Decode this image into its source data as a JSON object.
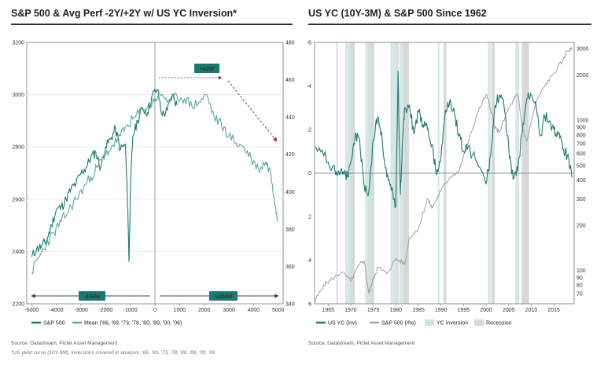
{
  "panels": {
    "left": {
      "title": "S&P 500 & Avg Perf -2Y/+2Y w/ US YC Inversion*",
      "legend": [
        "S&P 500",
        "Mean ('66, '69, '73, '78, '80, '89, '00, '06)"
      ],
      "source": "Source: Datastream, Pictet Asset Management",
      "note": "*US yield curve (10Y-3M), inversions covered in analysis: '66, '69, '73, '78, '80, '89, '00, '06"
    },
    "right": {
      "title": "US YC (10Y-3M) & S&P 500 Since 1962",
      "legend": [
        "US YC (inv)",
        "S&P 500 (rhs)",
        "YC Inversion",
        "Recession"
      ],
      "source": "Source: Datastream, Pictet Asset Management"
    }
  },
  "colors": {
    "teal": "#1a7a72",
    "mean_teal": "#5aa8a0",
    "gray_line": "#a0a0a0",
    "inversion_band": "#cfe3e1",
    "recession_band": "#d8d8d8",
    "arrow_red": "#a33a3a"
  },
  "chart_data": [
    {
      "type": "line",
      "title": "S&P 500 & Avg Perf -2Y/+2Y w/ US YC Inversion*",
      "x_ticks": [
        -5000,
        -4000,
        -3000,
        -2000,
        -1000,
        0,
        1000,
        2000,
        3000,
        4000,
        5000
      ],
      "xlim": [
        -5200,
        5200
      ],
      "y_left_ticks": [
        2200,
        2400,
        2600,
        2800,
        3000,
        3200
      ],
      "ylim_left": [
        2200,
        3200
      ],
      "y_right_ticks": [
        340,
        360,
        380,
        400,
        420,
        440,
        460,
        480
      ],
      "ylim_right": [
        340,
        480
      ],
      "annotations": {
        "left_arrow": "-104W",
        "right_arrow": "+104W",
        "top_arrow": "+42W"
      },
      "series": [
        {
          "name": "S&P 500",
          "axis": "left",
          "x": [
            -5000,
            -4800,
            -4600,
            -4400,
            -4200,
            -4000,
            -3800,
            -3600,
            -3400,
            -3200,
            -3000,
            -2800,
            -2600,
            -2400,
            -2200,
            -2000,
            -1800,
            -1600,
            -1400,
            -1200,
            -1100,
            -1050,
            -1000,
            -900,
            -700,
            -500,
            -300,
            -100,
            100,
            300,
            500,
            700,
            900
          ],
          "values": [
            2380,
            2410,
            2420,
            2440,
            2500,
            2560,
            2570,
            2600,
            2640,
            2660,
            2700,
            2720,
            2760,
            2780,
            2720,
            2800,
            2830,
            2870,
            2790,
            2810,
            2560,
            2360,
            2620,
            2840,
            2900,
            2950,
            2930,
            3000,
            3020,
            2920,
            2940,
            3000,
            2960
          ]
        },
        {
          "name": "Mean ('66, '69, '73, '78, '80, '89, '00, '06)",
          "axis": "right",
          "x": [
            -5000,
            -4700,
            -4400,
            -4100,
            -3800,
            -3500,
            -3200,
            -2900,
            -2600,
            -2300,
            -2000,
            -1700,
            -1400,
            -1100,
            -800,
            -500,
            -200,
            0,
            300,
            600,
            900,
            1200,
            1500,
            1800,
            2100,
            2400,
            2700,
            3000,
            3300,
            3600,
            3900,
            4200,
            4500,
            4700,
            4900,
            5000
          ],
          "values": [
            357,
            365,
            372,
            378,
            384,
            390,
            396,
            402,
            408,
            414,
            420,
            425,
            430,
            436,
            440,
            444,
            446,
            450,
            452,
            448,
            451,
            450,
            446,
            448,
            452,
            440,
            436,
            430,
            426,
            424,
            418,
            412,
            416,
            410,
            392,
            384
          ]
        }
      ]
    },
    {
      "type": "line",
      "title": "US YC (10Y-3M) & S&P 500 Since 1962",
      "x_ticks": [
        1965,
        1970,
        1975,
        1980,
        1985,
        1990,
        1995,
        2000,
        2005,
        2010,
        2015
      ],
      "xlim": [
        1962,
        2019.5
      ],
      "y_left_ticks": [
        -6,
        -4,
        -2,
        0,
        2,
        4,
        6
      ],
      "y_left_tick_labels": [
        "-6",
        "-4",
        "-2",
        "0",
        "2",
        "4",
        "6"
      ],
      "ylim_left": [
        -6,
        6
      ],
      "y_left_inverted": true,
      "y_right_ticks": [
        70,
        80,
        90,
        100,
        200,
        300,
        400,
        500,
        600,
        700,
        800,
        900,
        1000,
        2000,
        3000
      ],
      "ylim_right": [
        60,
        3300
      ],
      "y_right_log": true,
      "yc_inversion_periods": [
        [
          1966.8,
          1967.2
        ],
        [
          1968.8,
          1970.0
        ],
        [
          1973.2,
          1974.6
        ],
        [
          1978.8,
          1980.4
        ],
        [
          1980.8,
          1981.9
        ],
        [
          1989.3,
          1989.7
        ],
        [
          2000.4,
          2001.0
        ],
        [
          2006.5,
          2007.3
        ]
      ],
      "recession_periods": [
        [
          1969.9,
          1970.9
        ],
        [
          1973.9,
          1975.2
        ],
        [
          1980.0,
          1980.6
        ],
        [
          1981.6,
          1982.9
        ],
        [
          1990.6,
          1991.2
        ],
        [
          2001.2,
          2001.9
        ],
        [
          2007.9,
          2009.5
        ]
      ],
      "series": [
        {
          "name": "US YC (inv)",
          "axis": "left",
          "x": [
            1962,
            1964,
            1966,
            1967,
            1968,
            1969,
            1970,
            1971,
            1972,
            1973,
            1974,
            1975,
            1976,
            1977,
            1978,
            1979,
            1980,
            1980.5,
            1981,
            1981.5,
            1982,
            1983,
            1984,
            1985,
            1986,
            1987,
            1988,
            1989,
            1990,
            1991,
            1992,
            1993,
            1994,
            1995,
            1996,
            1998,
            2000,
            2001,
            2002,
            2003,
            2004,
            2005,
            2006,
            2007,
            2008,
            2009,
            2010,
            2011,
            2012,
            2013,
            2014,
            2015,
            2016,
            2017,
            2018,
            2019
          ],
          "values": [
            -1.2,
            -0.8,
            -0.3,
            0.1,
            -0.2,
            0.3,
            -0.5,
            -1.8,
            -1.5,
            0.6,
            0.9,
            -1.5,
            -2.6,
            -1.5,
            0.2,
            0.8,
            1.5,
            -4.7,
            1.0,
            -1.5,
            -3.0,
            -3.1,
            -1.8,
            -2.8,
            -2.2,
            -2.0,
            -1.3,
            0.1,
            -0.7,
            -2.9,
            -3.4,
            -2.7,
            -1.8,
            -1.0,
            -1.2,
            -0.5,
            0.5,
            -0.8,
            -3.1,
            -3.6,
            -3.0,
            -1.2,
            0.3,
            -0.1,
            -1.9,
            -3.4,
            -3.6,
            -3.3,
            -1.7,
            -2.6,
            -2.4,
            -2.0,
            -1.8,
            -1.1,
            -0.8,
            0.2
          ]
        },
        {
          "name": "S&P 500 (rhs)",
          "axis": "right",
          "x": [
            1962,
            1964,
            1966,
            1968,
            1970,
            1972,
            1973,
            1974,
            1975,
            1976,
            1978,
            1980,
            1982,
            1983,
            1985,
            1987,
            1988,
            1990,
            1992,
            1994,
            1996,
            1998,
            2000,
            2001,
            2002,
            2003,
            2005,
            2007,
            2008,
            2009,
            2011,
            2013,
            2015,
            2017,
            2018,
            2019
          ],
          "values": [
            62,
            80,
            88,
            98,
            85,
            110,
            116,
            70,
            88,
            105,
            95,
            120,
            110,
            165,
            190,
            300,
            260,
            340,
            420,
            460,
            700,
            1100,
            1480,
            1200,
            880,
            840,
            1200,
            1500,
            900,
            720,
            1300,
            1700,
            2050,
            2500,
            2900,
            2950
          ]
        }
      ]
    }
  ]
}
